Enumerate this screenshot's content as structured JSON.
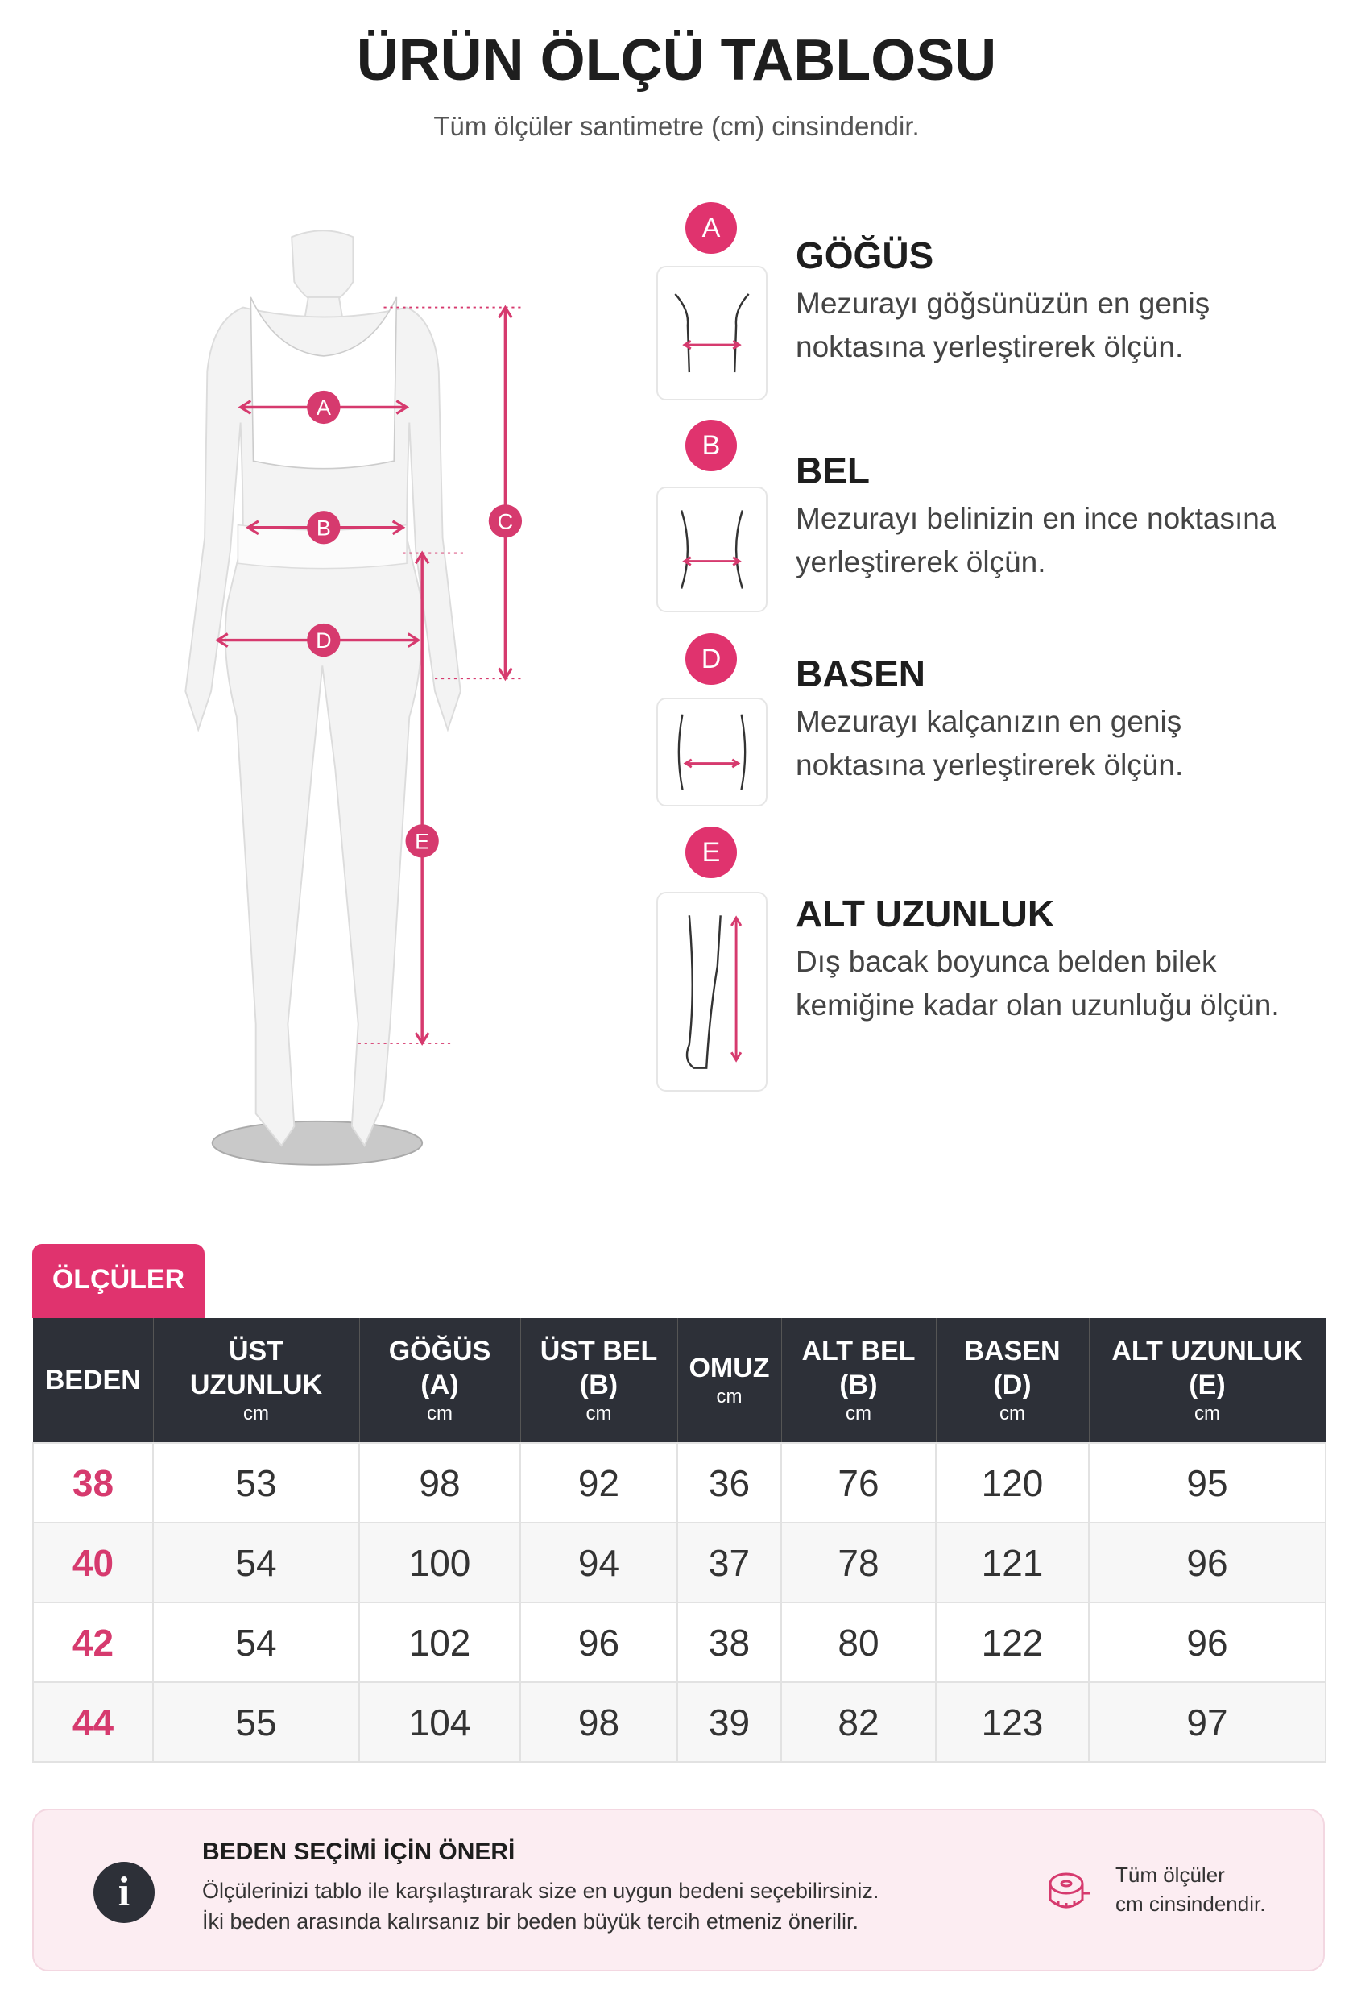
{
  "header": {
    "title": "ÜRÜN ÖLÇÜ TABLOSU",
    "subtitle": "Tüm ölçüler santimetre (cm) cinsindendir."
  },
  "figure": {
    "labels": [
      "A",
      "B",
      "C",
      "D",
      "E"
    ]
  },
  "measures": [
    {
      "letter": "A",
      "title": "GÖĞÜS",
      "lines": [
        "Mezurayı göğsünüzün en geniş",
        "noktasına yerleştirerek ölçün."
      ]
    },
    {
      "letter": "B",
      "title": "BEL",
      "lines": [
        "Mezurayı belinizin en ince noktasına",
        "yerleştirerek ölçün."
      ]
    },
    {
      "letter": "D",
      "title": "BASEN",
      "lines": [
        "Mezurayı kalçanızın en geniş",
        "noktasına yerleştirerek ölçün."
      ]
    },
    {
      "letter": "E",
      "title": "ALT UZUNLUK",
      "lines": [
        "Dış bacak boyunca belden bilek",
        "kemiğine kadar olan uzunluğu ölçün."
      ]
    }
  ],
  "table": {
    "tab": "ÖLÇÜLER",
    "columns": [
      {
        "lines": [
          "BEDEN"
        ]
      },
      {
        "lines": [
          "ÜST",
          "UZUNLUK"
        ],
        "unit": "cm"
      },
      {
        "lines": [
          "GÖĞÜS",
          "(A)"
        ],
        "unit": "cm"
      },
      {
        "lines": [
          "ÜST BEL",
          "(B)"
        ],
        "unit": "cm"
      },
      {
        "lines": [
          "OMUZ"
        ],
        "unit": "cm"
      },
      {
        "lines": [
          "ALT BEL",
          "(B)"
        ],
        "unit": "cm"
      },
      {
        "lines": [
          "BASEN",
          "(D)"
        ],
        "unit": "cm"
      },
      {
        "lines": [
          "ALT UZUNLUK",
          "(E)"
        ],
        "unit": "cm"
      }
    ],
    "rows": [
      [
        38,
        53,
        98,
        92,
        36,
        76,
        120,
        95
      ],
      [
        40,
        54,
        100,
        94,
        37,
        78,
        121,
        96
      ],
      [
        42,
        54,
        102,
        96,
        38,
        80,
        122,
        96
      ],
      [
        44,
        55,
        104,
        98,
        39,
        82,
        123,
        97
      ]
    ]
  },
  "note": {
    "icon": "i",
    "title": "BEDEN SEÇİMİ İÇİN ÖNERİ",
    "lines": [
      "Ölçülerinizi tablo ile karşılaştırarak size en uygun bedeni seçebilirsiniz.",
      "İki beden arasında kalırsanız bir beden büyük tercih etmeniz önerilir."
    ],
    "side": [
      "Tüm ölçüler",
      "cm cinsindendir."
    ]
  }
}
